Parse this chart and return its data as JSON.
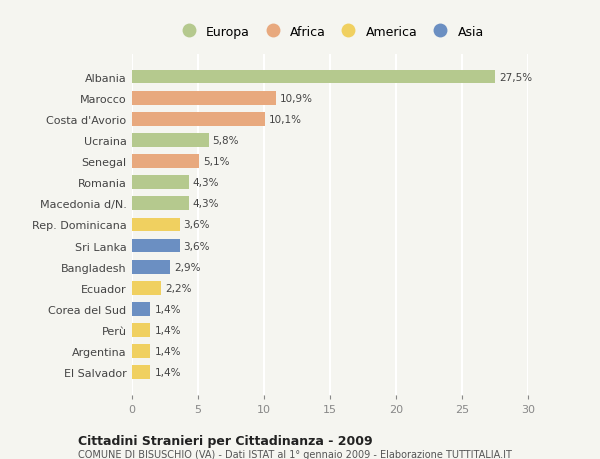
{
  "countries": [
    "Albania",
    "Marocco",
    "Costa d'Avorio",
    "Ucraina",
    "Senegal",
    "Romania",
    "Macedonia d/N.",
    "Rep. Dominicana",
    "Sri Lanka",
    "Bangladesh",
    "Ecuador",
    "Corea del Sud",
    "Perù",
    "Argentina",
    "El Salvador"
  ],
  "values": [
    27.5,
    10.9,
    10.1,
    5.8,
    5.1,
    4.3,
    4.3,
    3.6,
    3.6,
    2.9,
    2.2,
    1.4,
    1.4,
    1.4,
    1.4
  ],
  "labels": [
    "27,5%",
    "10,9%",
    "10,1%",
    "5,8%",
    "5,1%",
    "4,3%",
    "4,3%",
    "3,6%",
    "3,6%",
    "2,9%",
    "2,2%",
    "1,4%",
    "1,4%",
    "1,4%",
    "1,4%"
  ],
  "continents": [
    "Europa",
    "Africa",
    "Africa",
    "Europa",
    "Africa",
    "Europa",
    "Europa",
    "America",
    "Asia",
    "Asia",
    "America",
    "Asia",
    "America",
    "America",
    "America"
  ],
  "colors": {
    "Europa": "#b5c98e",
    "Africa": "#e8a97e",
    "America": "#f0d060",
    "Asia": "#6b8fc2"
  },
  "xlim": [
    0,
    30
  ],
  "xticks": [
    0,
    5,
    10,
    15,
    20,
    25,
    30
  ],
  "title": "Cittadini Stranieri per Cittadinanza - 2009",
  "subtitle": "COMUNE DI BISUSCHIO (VA) - Dati ISTAT al 1° gennaio 2009 - Elaborazione TUTTITALIA.IT",
  "background_color": "#f5f5f0",
  "grid_color": "#ffffff",
  "bar_height": 0.65
}
